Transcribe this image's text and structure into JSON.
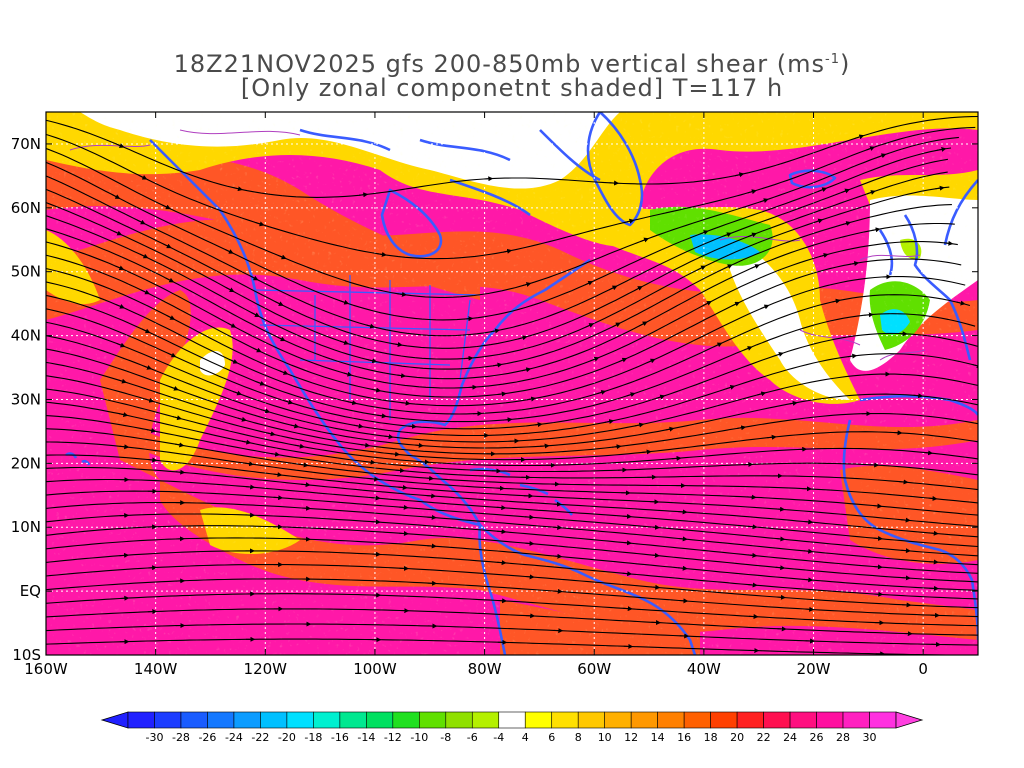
{
  "title": {
    "line1_prefix": "18Z21NOV2025 gfs 200-850mb vertical shear (ms",
    "line1_sup": "-1",
    "line1_suffix": ")",
    "line2": "[Only zonal componetnt shaded] T=117 h"
  },
  "map": {
    "lon_range": [
      -160,
      10
    ],
    "lat_range": [
      -10,
      75
    ],
    "lon_ticks": [
      {
        "value": -160,
        "label": "160W"
      },
      {
        "value": -140,
        "label": "140W"
      },
      {
        "value": -120,
        "label": "120W"
      },
      {
        "value": -100,
        "label": "100W"
      },
      {
        "value": -80,
        "label": "80W"
      },
      {
        "value": -60,
        "label": "60W"
      },
      {
        "value": -40,
        "label": "40W"
      },
      {
        "value": -20,
        "label": "20W"
      },
      {
        "value": 0,
        "label": "0"
      }
    ],
    "lat_ticks": [
      {
        "value": 70,
        "label": "70N"
      },
      {
        "value": 60,
        "label": "60N"
      },
      {
        "value": 50,
        "label": "50N"
      },
      {
        "value": 40,
        "label": "40N"
      },
      {
        "value": 30,
        "label": "30N"
      },
      {
        "value": 20,
        "label": "20N"
      },
      {
        "value": 10,
        "label": "10N"
      },
      {
        "value": 0,
        "label": "EQ"
      },
      {
        "value": -10,
        "label": "10S"
      }
    ],
    "grid": true,
    "coastline_color": "#3a5cff",
    "streamline_color": "#000000"
  },
  "colorbar": {
    "labels": [
      "-30",
      "-28",
      "-26",
      "-24",
      "-22",
      "-20",
      "-18",
      "-16",
      "-14",
      "-12",
      "-10",
      "-8",
      "-6",
      "-4",
      "4",
      "6",
      "8",
      "10",
      "12",
      "14",
      "16",
      "18",
      "20",
      "22",
      "24",
      "26",
      "28",
      "30"
    ],
    "colors": [
      "#2020ff",
      "#1c3cff",
      "#1a5cff",
      "#1478ff",
      "#0c9cff",
      "#00c0ff",
      "#00e0ff",
      "#00f0d0",
      "#00e890",
      "#00e060",
      "#20e020",
      "#60e000",
      "#90e000",
      "#b4f000",
      "#ffffff",
      "#ffff00",
      "#ffe000",
      "#ffc800",
      "#ffb000",
      "#ff9800",
      "#ff8000",
      "#ff6000",
      "#ff4000",
      "#ff2020",
      "#ff1050",
      "#ff1080",
      "#ff10a0",
      "#ff20c0",
      "#ff30e0"
    ],
    "low_arrow_color": "#2020ff",
    "high_arrow_color": "#ff40e0"
  }
}
